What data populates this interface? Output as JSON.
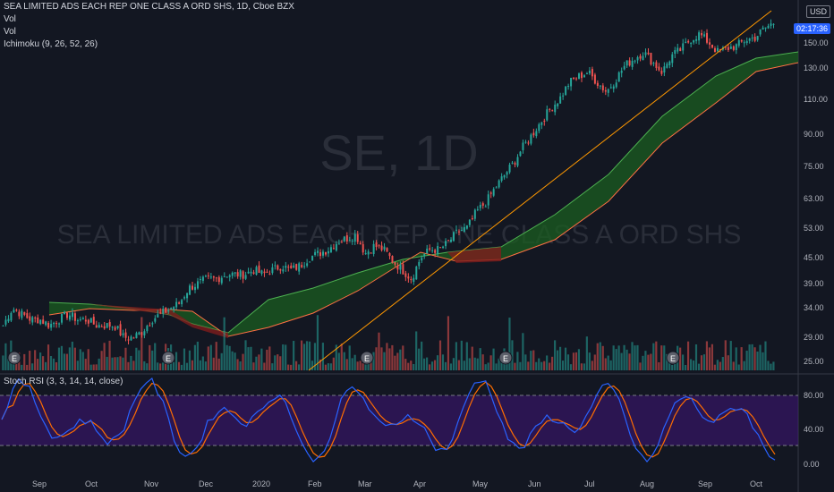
{
  "header": {
    "symbol_title": "SEA LIMITED ADS EACH REP ONE CLASS A ORD SHS, 1D, Cboe BZX",
    "vol1": "Vol",
    "vol2": "Vol",
    "ichimoku": "Ichimoku (9, 26, 52, 26)"
  },
  "watermark": {
    "ticker": "SE, 1D",
    "name": "SEA LIMITED ADS EACH REP ONE CLASS A ORD SHS"
  },
  "price_axis": {
    "currency": "USD",
    "countdown": "02:17:36",
    "ticks": [
      "150.00",
      "130.00",
      "110.00",
      "90.00",
      "75.00",
      "63.00",
      "53.00",
      "45.00",
      "39.00",
      "34.00",
      "29.00",
      "25.00"
    ]
  },
  "stoch": {
    "label": "Stoch RSI (3, 3, 14, 14, close)",
    "ticks": [
      "80.00",
      "40.00",
      "0.00"
    ]
  },
  "time_axis": [
    "Sep",
    "Oct",
    "Nov",
    "Dec",
    "2020",
    "Feb",
    "Mar",
    "Apr",
    "May",
    "Jun",
    "Jul",
    "Aug",
    "Sep",
    "Oct"
  ],
  "colors": {
    "up": "#26a69a",
    "down": "#ef5350",
    "cloud_up": "#1b5e20",
    "cloud_down": "#7f1d1d",
    "stoch_k": "#2962ff",
    "stoch_d": "#ff6d00",
    "stoch_band": "#4a148c"
  },
  "chart_data": {
    "type": "candlestick",
    "price_scale": "log",
    "y_range": [
      24,
      175
    ],
    "stoch_range": [
      0,
      100
    ],
    "stoch_bands": [
      20,
      80
    ],
    "earnings_markers": 6,
    "approx_closes": [
      30,
      33,
      32,
      31,
      31,
      30,
      31,
      32,
      31,
      31,
      30,
      30,
      30,
      28,
      28,
      29,
      31,
      32,
      33,
      34,
      37,
      38,
      39,
      39,
      40,
      40,
      40,
      41,
      40,
      41,
      42,
      41,
      42,
      44,
      45,
      46,
      48,
      49,
      50,
      45,
      47,
      46,
      43,
      41,
      39,
      44,
      46,
      46,
      48,
      51,
      52,
      57,
      60,
      65,
      70,
      75,
      82,
      88,
      95,
      102,
      108,
      118,
      122,
      125,
      118,
      112,
      120,
      130,
      135,
      140,
      132,
      125,
      137,
      142,
      150,
      155,
      148,
      140,
      143,
      145,
      150,
      152,
      160,
      165
    ]
  }
}
